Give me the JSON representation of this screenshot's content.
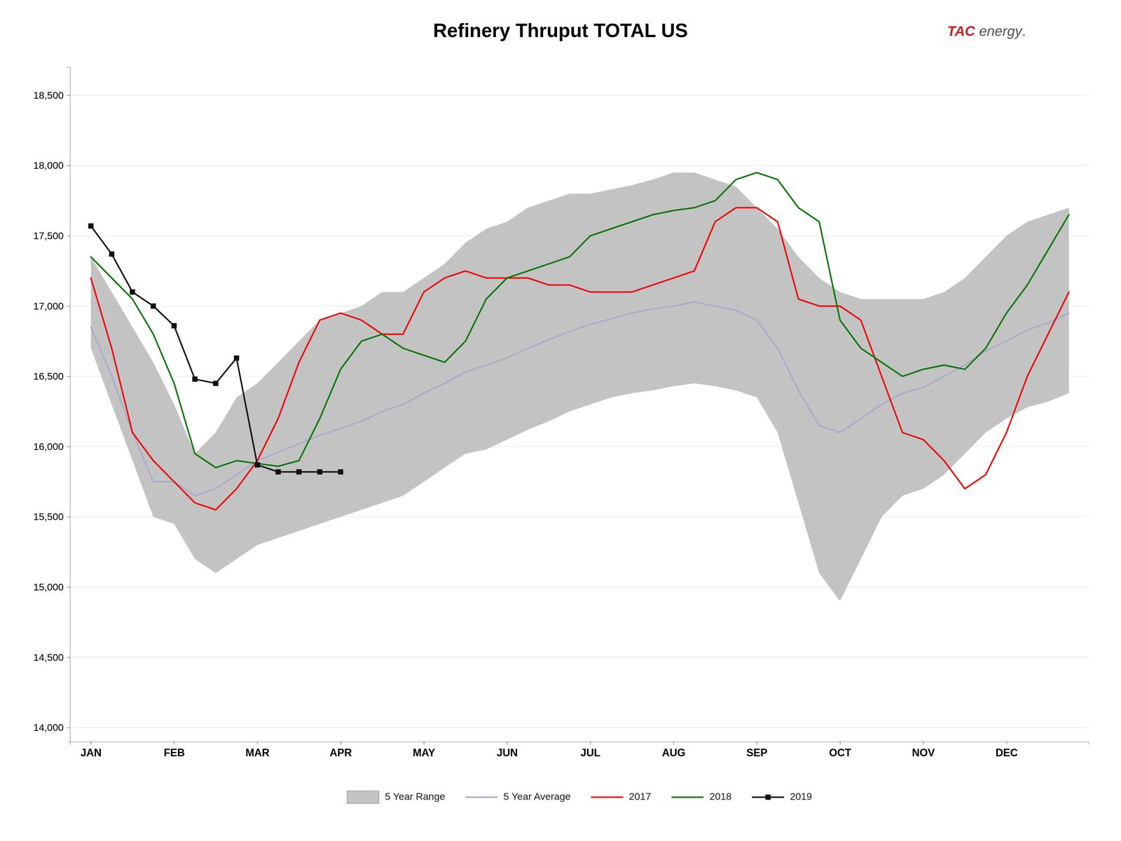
{
  "chart_data": {
    "type": "line",
    "title": "Refinery Thruput TOTAL US",
    "annotations": [
      {
        "text": "TAC",
        "color": "#cc2222"
      },
      {
        "text": "energy",
        "color": "#555555"
      },
      {
        "text": ".",
        "color": "#555555"
      }
    ],
    "x": [
      0.0,
      0.25,
      0.5,
      0.75,
      1.0,
      1.25,
      1.5,
      1.75,
      2.0,
      2.25,
      2.5,
      2.75,
      3.0,
      3.25,
      3.5,
      3.75,
      4.0,
      4.25,
      4.5,
      4.75,
      5.0,
      5.25,
      5.5,
      5.75,
      6.0,
      6.25,
      6.5,
      6.75,
      7.0,
      7.25,
      7.5,
      7.75,
      8.0,
      8.25,
      8.5,
      8.75,
      9.0,
      9.25,
      9.5,
      9.75,
      10.0,
      10.25,
      10.5,
      10.75,
      11.0,
      11.25,
      11.5,
      11.75
    ],
    "xlim": [
      -0.25,
      11.99
    ],
    "xticks": [
      {
        "value": 0,
        "label": "JAN"
      },
      {
        "value": 1,
        "label": "FEB"
      },
      {
        "value": 2,
        "label": "MAR"
      },
      {
        "value": 3,
        "label": "APR"
      },
      {
        "value": 4,
        "label": "MAY"
      },
      {
        "value": 5,
        "label": "JUN"
      },
      {
        "value": 6,
        "label": "JUL"
      },
      {
        "value": 7,
        "label": "AUG"
      },
      {
        "value": 8,
        "label": "SEP"
      },
      {
        "value": 9,
        "label": "OCT"
      },
      {
        "value": 10,
        "label": "NOV"
      },
      {
        "value": 11,
        "label": "DEC"
      }
    ],
    "ylim": [
      13900,
      18700
    ],
    "yticks": [
      {
        "value": 14000,
        "label": "14,000"
      },
      {
        "value": 14500,
        "label": "14,500"
      },
      {
        "value": 15000,
        "label": "15,000"
      },
      {
        "value": 15500,
        "label": "15,500"
      },
      {
        "value": 16000,
        "label": "16,000"
      },
      {
        "value": 16500,
        "label": "16,500"
      },
      {
        "value": 17000,
        "label": "17,000"
      },
      {
        "value": 17500,
        "label": "17,500"
      },
      {
        "value": 18000,
        "label": "18,000"
      },
      {
        "value": 18500,
        "label": "18,500"
      }
    ],
    "grid": "y",
    "legend": "bottom",
    "series": [
      {
        "name": "5 Year Range",
        "type": "range",
        "color": "#b8b8b8",
        "lower": [
          16700,
          16300,
          15900,
          15500,
          15450,
          15200,
          15100,
          15200,
          15300,
          15350,
          15400,
          15450,
          15500,
          15550,
          15600,
          15650,
          15750,
          15850,
          15950,
          15980,
          16050,
          16120,
          16180,
          16250,
          16300,
          16350,
          16380,
          16400,
          16430,
          16450,
          16430,
          16400,
          16350,
          16100,
          15600,
          15100,
          14900,
          15200,
          15500,
          15650,
          15700,
          15800,
          15950,
          16100,
          16200,
          16280,
          16320,
          16380
        ],
        "upper": [
          17350,
          17100,
          16850,
          16600,
          16300,
          15950,
          16100,
          16350,
          16450,
          16600,
          16750,
          16900,
          16950,
          17000,
          17100,
          17100,
          17200,
          17300,
          17450,
          17550,
          17600,
          17700,
          17750,
          17800,
          17800,
          17830,
          17860,
          17900,
          17950,
          17950,
          17900,
          17850,
          17700,
          17550,
          17350,
          17200,
          17100,
          17050,
          17050,
          17050,
          17050,
          17100,
          17200,
          17350,
          17500,
          17600,
          17650,
          17700
        ]
      },
      {
        "name": "5 Year Average",
        "type": "line",
        "color": "#aaaacc",
        "values": [
          16850,
          16500,
          16100,
          15750,
          15750,
          15650,
          15700,
          15800,
          15900,
          15960,
          16020,
          16080,
          16130,
          16180,
          16250,
          16300,
          16380,
          16450,
          16530,
          16580,
          16630,
          16700,
          16760,
          16820,
          16870,
          16910,
          16950,
          16980,
          17000,
          17030,
          17000,
          16970,
          16900,
          16700,
          16400,
          16150,
          16100,
          16200,
          16300,
          16380,
          16420,
          16500,
          16580,
          16680,
          16750,
          16830,
          16880,
          16950
        ]
      },
      {
        "name": "2017",
        "type": "line",
        "color": "#ee0000",
        "values": [
          17200,
          16700,
          16100,
          15900,
          15750,
          15600,
          15550,
          15700,
          15900,
          16200,
          16600,
          16900,
          16950,
          16900,
          16800,
          16800,
          17100,
          17200,
          17250,
          17200,
          17200,
          17200,
          17150,
          17150,
          17100,
          17100,
          17100,
          17150,
          17200,
          17250,
          17600,
          17700,
          17700,
          17600,
          17050,
          17000,
          17000,
          16900,
          16500,
          16100,
          16050,
          15900,
          15700,
          15800,
          16100,
          16500,
          16800,
          17100
        ]
      },
      {
        "name": "2018",
        "type": "line",
        "color": "#007700",
        "values": [
          17350,
          17200,
          17050,
          16800,
          16450,
          15950,
          15850,
          15900,
          15880,
          15860,
          15900,
          16200,
          16550,
          16750,
          16800,
          16700,
          16650,
          16600,
          16750,
          17050,
          17200,
          17250,
          17300,
          17350,
          17500,
          17550,
          17600,
          17650,
          17680,
          17700,
          17750,
          17900,
          17950,
          17900,
          17700,
          17600,
          16900,
          16700,
          16600,
          16500,
          16550,
          16580,
          16550,
          16700,
          16950,
          17150,
          17400,
          17650
        ]
      },
      {
        "name": "2019",
        "type": "line",
        "color": "#111111",
        "marker": "square",
        "x": [
          0.0,
          0.25,
          0.5,
          0.75,
          1.0,
          1.25,
          1.5,
          1.75,
          2.0,
          2.25,
          2.5,
          2.75,
          3.0
        ],
        "values": [
          17570,
          17370,
          17100,
          17000,
          16860,
          16480,
          16450,
          16630,
          15870,
          15820,
          15820,
          15820,
          15820
        ]
      }
    ]
  }
}
